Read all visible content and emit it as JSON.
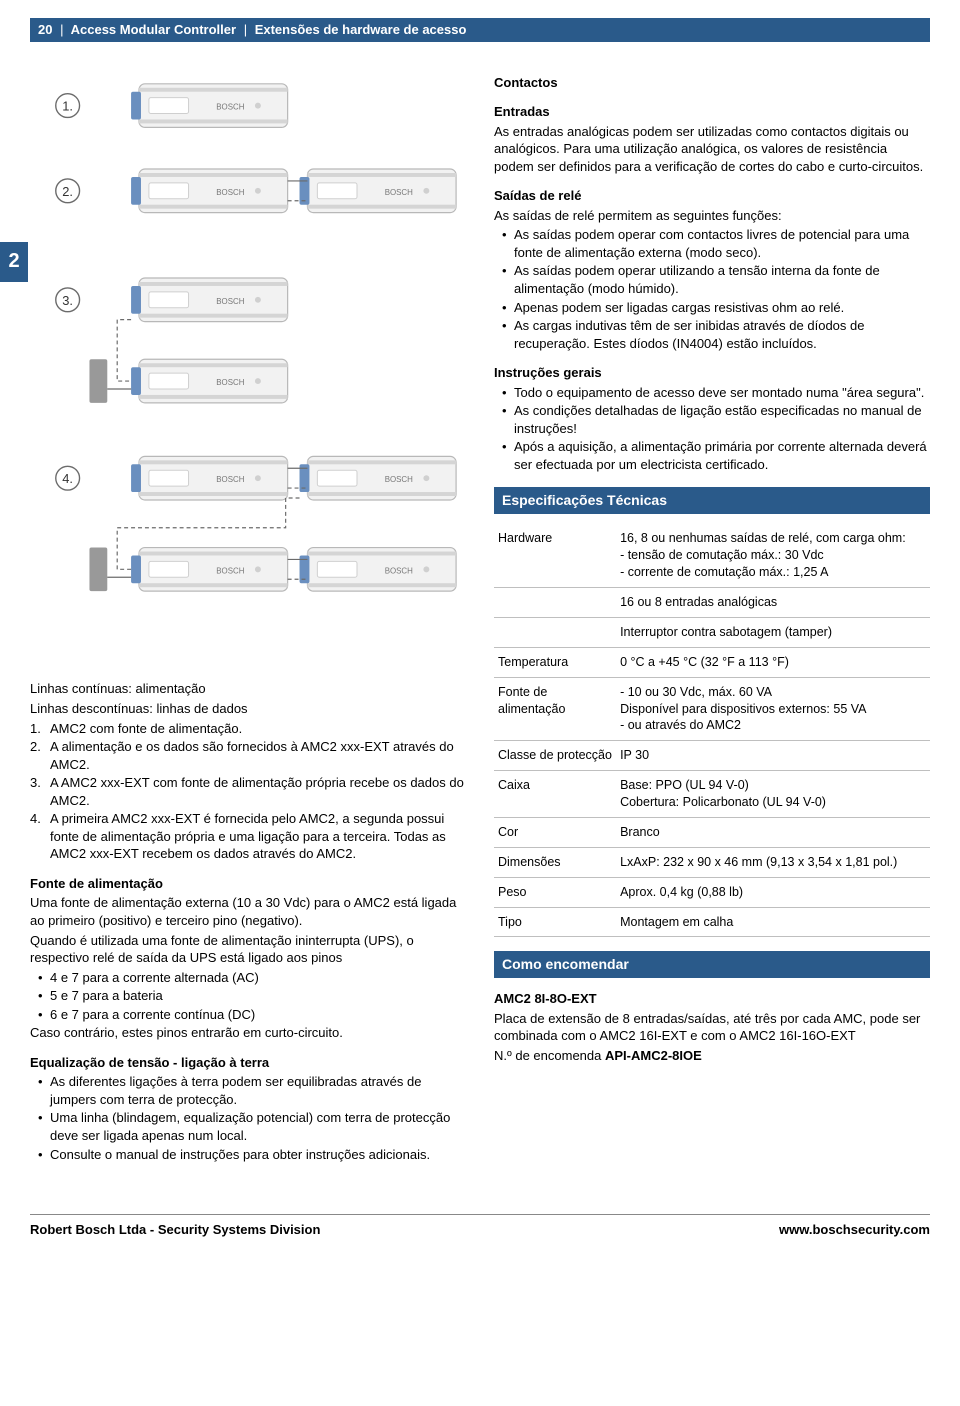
{
  "header": {
    "page_num": "20",
    "product": "Access Modular Controller",
    "section": "Extensões de hardware de acesso"
  },
  "chapter_tab": "2",
  "diagram": {
    "labels": [
      "1.",
      "2.",
      "3.",
      "4."
    ],
    "device_label": "BOSCH",
    "colors": {
      "device_fill": "#f2f2f2",
      "device_stroke": "#b8b8b8",
      "connector_blue": "#6a8fbf",
      "line": "#6b6b6b",
      "circle_stroke": "#6b6b6b"
    }
  },
  "legend": {
    "line1": "Linhas contínuas: alimentação",
    "line2": "Linhas descontínuas: linhas de dados",
    "items": [
      "AMC2 com fonte de alimentação.",
      "A alimentação e os dados são fornecidos à AMC2 xxx-EXT através do AMC2.",
      "A AMC2 xxx-EXT com fonte de alimentação própria recebe os dados do AMC2.",
      "A primeira AMC2 xxx-EXT é fornecida pelo AMC2, a segunda possui fonte de alimentação própria e uma ligação para a terceira. Todas as AMC2 xxx-EXT recebem os dados através do AMC2."
    ]
  },
  "fonte": {
    "title": "Fonte de alimentação",
    "p1": "Uma fonte de alimentação externa (10 a 30 Vdc) para o AMC2 está ligada ao primeiro (positivo) e terceiro pino (negativo).",
    "p2": "Quando é utilizada uma fonte de alimentação ininterrupta (UPS), o respectivo relé de saída da UPS está ligado aos pinos",
    "bullets": [
      "4 e 7 para a corrente alternada (AC)",
      "5 e 7 para a bateria",
      "6 e 7 para a corrente contínua (DC)"
    ],
    "p3": "Caso contrário, estes pinos entrarão em curto-circuito."
  },
  "equalizacao": {
    "title": "Equalização de tensão - ligação à terra",
    "bullets": [
      "As diferentes ligações à terra podem ser equilibradas através de jumpers com terra de protecção.",
      "Uma linha (blindagem, equalização potencial) com terra de protecção deve ser ligada apenas num local.",
      "Consulte o manual de instruções para obter instruções adicionais."
    ]
  },
  "contactos": {
    "heading": "Contactos",
    "entradas_title": "Entradas",
    "entradas_text": "As entradas analógicas podem ser utilizadas como contactos digitais ou analógicos. Para uma utilização analógica, os valores de resistência podem ser definidos para a verificação de cortes do cabo e curto-circuitos.",
    "saidas_title": "Saídas de relé",
    "saidas_intro": "As saídas de relé permitem as seguintes funções:",
    "saidas_bullets": [
      "As saídas podem operar com contactos livres de potencial para uma fonte de alimentação externa (modo seco).",
      "As saídas podem operar utilizando a tensão interna da fonte de alimentação (modo húmido).",
      "Apenas podem ser ligadas cargas resistivas ohm ao relé.",
      "As cargas indutivas têm de ser inibidas através de díodos de recuperação. Estes díodos (IN4004) estão incluídos."
    ],
    "instrucoes_title": "Instruções gerais",
    "instrucoes_bullets": [
      "Todo o equipamento de acesso deve ser montado numa \"área segura\".",
      "As condições detalhadas de ligação estão especificadas no manual de instruções!",
      "Após a aquisição, a alimentação primária por corrente alternada deverá ser efectuada por um electricista certificado."
    ]
  },
  "specs": {
    "title": "Especificações Técnicas",
    "rows": [
      {
        "k": "Hardware",
        "v": "16, 8 ou nenhumas saídas de relé, com carga ohm:\n- tensão de comutação máx.: 30 Vdc\n- corrente de comutação máx.: 1,25 A"
      },
      {
        "k": "",
        "v": "16 ou 8 entradas analógicas"
      },
      {
        "k": "",
        "v": "Interruptor contra sabotagem (tamper)"
      },
      {
        "k": "Temperatura",
        "v": "0 °C a +45 °C (32 °F a 113 °F)"
      },
      {
        "k": "Fonte de alimentação",
        "v": "- 10 ou 30 Vdc, máx. 60 VA\nDisponível para dispositivos externos: 55 VA\n- ou através do AMC2"
      },
      {
        "k": "Classe de protecção",
        "v": "IP 30"
      },
      {
        "k": "Caixa",
        "v": "Base: PPO (UL 94 V-0)\nCobertura: Policarbonato (UL 94 V-0)"
      },
      {
        "k": "Cor",
        "v": "Branco"
      },
      {
        "k": "Dimensões",
        "v": "LxAxP: 232 x 90 x 46 mm (9,13 x 3,54 x 1,81 pol.)"
      },
      {
        "k": "Peso",
        "v": "Aprox. 0,4 kg (0,88 lb)"
      },
      {
        "k": "Tipo",
        "v": "Montagem em calha"
      }
    ]
  },
  "ordering": {
    "title": "Como encomendar",
    "product": "AMC2 8I-8O-EXT",
    "desc": "Placa de extensão de 8 entradas/saídas, até três por cada AMC, pode ser combinada com o AMC2 16I-EXT e com o AMC2 16I-16O-EXT",
    "order_line_prefix": "N.º de encomenda ",
    "order_code": "API-AMC2-8IOE"
  },
  "footer": {
    "left": "Robert Bosch Ltda - Security Systems Division",
    "right": "www.boschsecurity.com"
  }
}
